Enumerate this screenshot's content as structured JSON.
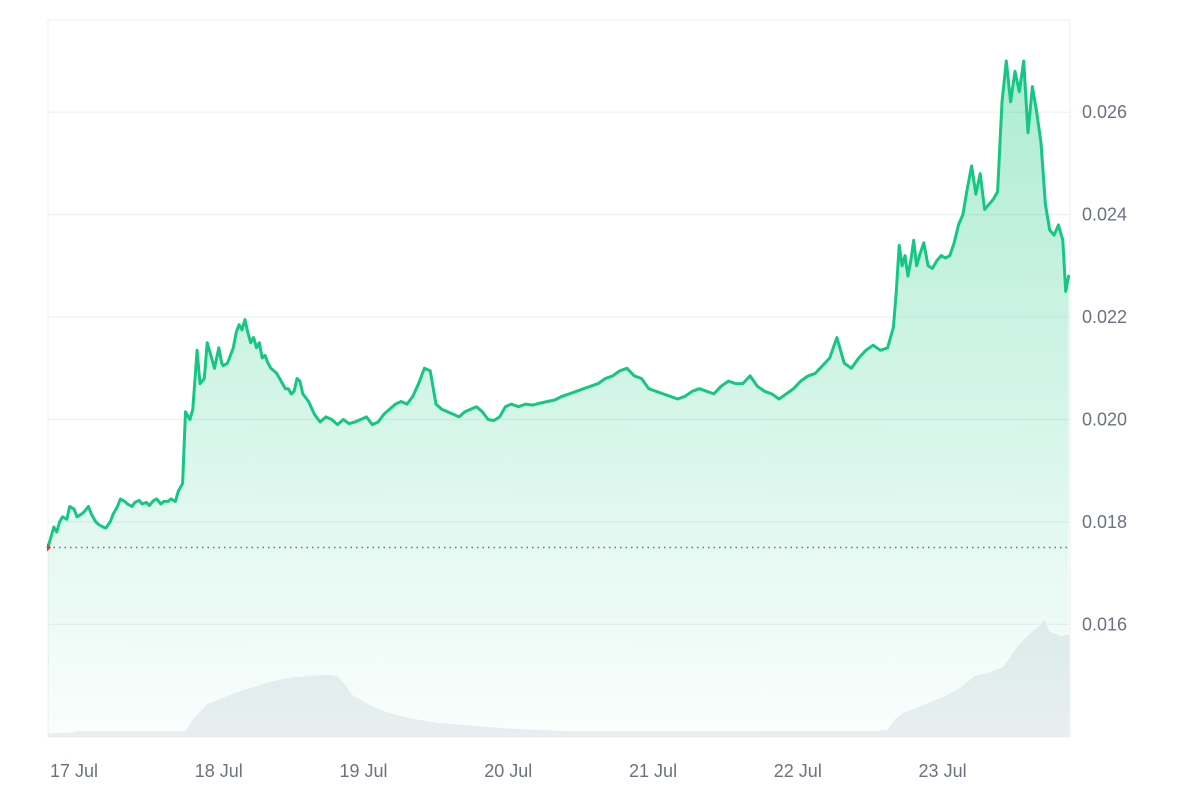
{
  "chart_data": {
    "type": "area",
    "title": "",
    "xlabel": "",
    "ylabel": "",
    "x_ticks": [
      "17 Jul",
      "18 Jul",
      "19 Jul",
      "20 Jul",
      "21 Jul",
      "22 Jul",
      "23 Jul"
    ],
    "y_ticks": [
      "0.016",
      "0.018",
      "0.020",
      "0.022",
      "0.024",
      "0.026"
    ],
    "ylim": [
      0.0138,
      0.0278
    ],
    "xlim": [
      0,
      7.06
    ],
    "grid": true,
    "y_axis_position": "right",
    "colors": {
      "line": "#16c784",
      "area_top": "#16c784",
      "baseline_dots": "#6b7280",
      "start_marker": "#ea3943",
      "volume": "#eceff3",
      "grid": "#eef0f3",
      "axis_text": "#6b7280"
    },
    "baseline": 0.0175,
    "series": [
      {
        "x": [
          0.0,
          0.04,
          0.06,
          0.08,
          0.1,
          0.13,
          0.15,
          0.18,
          0.2,
          0.23,
          0.25,
          0.28,
          0.3,
          0.33,
          0.35,
          0.38,
          0.4,
          0.43,
          0.45,
          0.48,
          0.5,
          0.53,
          0.55,
          0.58,
          0.6,
          0.63,
          0.65,
          0.68,
          0.7,
          0.73,
          0.75,
          0.78,
          0.8,
          0.83,
          0.85,
          0.88,
          0.9,
          0.93,
          0.95,
          0.98,
          1.0,
          1.03,
          1.05,
          1.08,
          1.1,
          1.13,
          1.15,
          1.18,
          1.2,
          1.21,
          1.24,
          1.26,
          1.28,
          1.3,
          1.32,
          1.34,
          1.36,
          1.38,
          1.4,
          1.42,
          1.44,
          1.46,
          1.48,
          1.5,
          1.52,
          1.54,
          1.56,
          1.58,
          1.6,
          1.62,
          1.64,
          1.66,
          1.68,
          1.7,
          1.72,
          1.74,
          1.76,
          1.8,
          1.84,
          1.88,
          1.92,
          1.96,
          2.0,
          2.04,
          2.08,
          2.12,
          2.16,
          2.2,
          2.24,
          2.28,
          2.32,
          2.36,
          2.4,
          2.44,
          2.48,
          2.52,
          2.56,
          2.6,
          2.64,
          2.68,
          2.72,
          2.76,
          2.8,
          2.84,
          2.88,
          2.92,
          2.96,
          3.0,
          3.04,
          3.08,
          3.12,
          3.16,
          3.2,
          3.25,
          3.3,
          3.35,
          3.4,
          3.45,
          3.5,
          3.55,
          3.6,
          3.65,
          3.7,
          3.75,
          3.8,
          3.85,
          3.9,
          3.95,
          4.0,
          4.05,
          4.1,
          4.15,
          4.2,
          4.25,
          4.3,
          4.35,
          4.4,
          4.45,
          4.5,
          4.55,
          4.6,
          4.65,
          4.7,
          4.75,
          4.8,
          4.85,
          4.9,
          4.95,
          5.0,
          5.05,
          5.1,
          5.15,
          5.2,
          5.25,
          5.3,
          5.35,
          5.4,
          5.45,
          5.5,
          5.55,
          5.6,
          5.65,
          5.7,
          5.75,
          5.8,
          5.82,
          5.84,
          5.86,
          5.88,
          5.9,
          5.92,
          5.94,
          5.96,
          5.98,
          6.0,
          6.02,
          6.05,
          6.08,
          6.11,
          6.14,
          6.17,
          6.2,
          6.23,
          6.26,
          6.29,
          6.32,
          6.35,
          6.38,
          6.41,
          6.44,
          6.47,
          6.5,
          6.53,
          6.56,
          6.59,
          6.62,
          6.65,
          6.68,
          6.71,
          6.74,
          6.77,
          6.8,
          6.83,
          6.86,
          6.89,
          6.92,
          6.95,
          6.98,
          7.01,
          7.03,
          7.05
        ],
        "y": [
          0.0175,
          0.0179,
          0.0178,
          0.018,
          0.0181,
          0.01805,
          0.0183,
          0.01825,
          0.0181,
          0.01815,
          0.0182,
          0.0183,
          0.01815,
          0.018,
          0.01795,
          0.0179,
          0.01788,
          0.018,
          0.01815,
          0.0183,
          0.01845,
          0.0184,
          0.01835,
          0.0183,
          0.01838,
          0.01842,
          0.01835,
          0.01838,
          0.01832,
          0.01842,
          0.01845,
          0.01835,
          0.0184,
          0.0184,
          0.01845,
          0.0184,
          0.0186,
          0.01875,
          0.02015,
          0.02,
          0.0202,
          0.02135,
          0.0207,
          0.0208,
          0.0215,
          0.0212,
          0.021,
          0.0214,
          0.0211,
          0.02105,
          0.0211,
          0.02125,
          0.0214,
          0.0217,
          0.02185,
          0.02175,
          0.02195,
          0.0217,
          0.0215,
          0.0216,
          0.0214,
          0.0215,
          0.0212,
          0.02125,
          0.0211,
          0.021,
          0.02095,
          0.0209,
          0.0208,
          0.0207,
          0.0206,
          0.0206,
          0.0205,
          0.02055,
          0.0208,
          0.02075,
          0.0205,
          0.02035,
          0.0201,
          0.01995,
          0.02005,
          0.02,
          0.0199,
          0.02,
          0.01992,
          0.01995,
          0.02,
          0.02005,
          0.0199,
          0.01995,
          0.0201,
          0.0202,
          0.0203,
          0.02035,
          0.0203,
          0.02045,
          0.0207,
          0.021,
          0.02095,
          0.0203,
          0.0202,
          0.02015,
          0.0201,
          0.02005,
          0.02015,
          0.0202,
          0.02025,
          0.02015,
          0.02,
          0.01998,
          0.02005,
          0.02025,
          0.0203,
          0.02025,
          0.0203,
          0.02028,
          0.02032,
          0.02035,
          0.02038,
          0.02045,
          0.0205,
          0.02055,
          0.0206,
          0.02065,
          0.0207,
          0.0208,
          0.02085,
          0.02095,
          0.021,
          0.02085,
          0.0208,
          0.0206,
          0.02055,
          0.0205,
          0.02045,
          0.0204,
          0.02045,
          0.02055,
          0.0206,
          0.02055,
          0.0205,
          0.02065,
          0.02075,
          0.0207,
          0.0207,
          0.02085,
          0.02065,
          0.02055,
          0.0205,
          0.0204,
          0.0205,
          0.0206,
          0.02075,
          0.02085,
          0.0209,
          0.02105,
          0.0212,
          0.0216,
          0.0211,
          0.021,
          0.0212,
          0.02135,
          0.02145,
          0.02135,
          0.0214,
          0.0216,
          0.0218,
          0.0225,
          0.0234,
          0.023,
          0.0232,
          0.0228,
          0.0231,
          0.0235,
          0.023,
          0.0232,
          0.02345,
          0.023,
          0.02295,
          0.0231,
          0.0232,
          0.02315,
          0.0232,
          0.02345,
          0.0238,
          0.024,
          0.0245,
          0.02495,
          0.0244,
          0.0248,
          0.0241,
          0.0242,
          0.0243,
          0.02445,
          0.0262,
          0.027,
          0.0262,
          0.0268,
          0.0264,
          0.027,
          0.0256,
          0.0265,
          0.026,
          0.0254,
          0.0242,
          0.0237,
          0.0236,
          0.0238,
          0.0235,
          0.0225,
          0.0228
        ]
      }
    ],
    "volume": {
      "x": [
        0.0,
        0.18,
        0.2,
        0.7,
        0.9,
        0.95,
        1.0,
        1.1,
        1.2,
        1.3,
        1.4,
        1.5,
        1.6,
        1.7,
        1.8,
        1.9,
        1.95,
        2.0,
        2.05,
        2.1,
        2.2,
        2.3,
        2.4,
        2.5,
        2.6,
        2.7,
        2.8,
        2.9,
        3.0,
        3.1,
        3.2,
        3.4,
        3.6,
        3.8,
        4.0,
        4.2,
        4.4,
        4.6,
        4.8,
        5.0,
        5.2,
        5.4,
        5.5,
        5.7,
        5.8,
        5.82,
        5.85,
        5.9,
        6.0,
        6.1,
        6.2,
        6.3,
        6.4,
        6.5,
        6.6,
        6.7,
        6.78,
        6.85,
        6.88,
        6.92,
        7.0,
        7.06
      ],
      "values": [
        0.03,
        0.04,
        0.05,
        0.05,
        0.05,
        0.05,
        0.15,
        0.28,
        0.33,
        0.38,
        0.42,
        0.46,
        0.49,
        0.51,
        0.52,
        0.53,
        0.53,
        0.52,
        0.45,
        0.36,
        0.29,
        0.23,
        0.19,
        0.16,
        0.14,
        0.12,
        0.11,
        0.1,
        0.09,
        0.08,
        0.07,
        0.06,
        0.05,
        0.05,
        0.05,
        0.05,
        0.05,
        0.05,
        0.05,
        0.05,
        0.05,
        0.05,
        0.05,
        0.05,
        0.06,
        0.1,
        0.15,
        0.2,
        0.25,
        0.3,
        0.35,
        0.42,
        0.52,
        0.55,
        0.6,
        0.78,
        0.88,
        0.95,
        1.0,
        0.9,
        0.86,
        0.88
      ]
    }
  }
}
